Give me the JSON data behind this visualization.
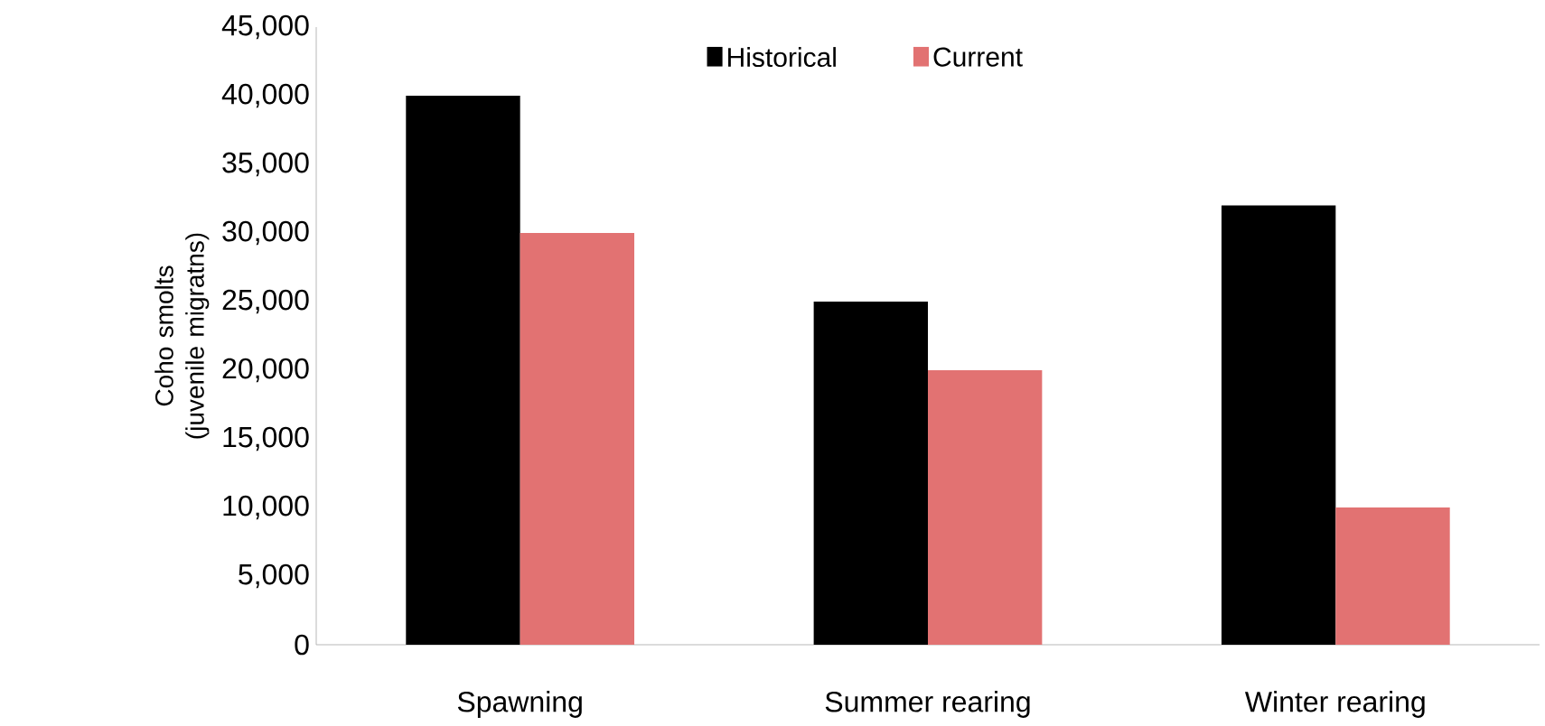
{
  "chart_data": {
    "type": "bar",
    "ylabel": "Coho smolts (juvenile migratns)",
    "categories": [
      "Spawning",
      "Summer rearing",
      "Winter rearing"
    ],
    "series": [
      {
        "name": "Historical",
        "color": "#000000",
        "values": [
          40000,
          25000,
          32000
        ]
      },
      {
        "name": "Current",
        "color": "#e27272",
        "values": [
          30000,
          20000,
          10000
        ]
      }
    ],
    "ylim": [
      0,
      45000
    ],
    "yticks": [
      {
        "value": 0,
        "label": "0"
      },
      {
        "value": 5000,
        "label": "5,000"
      },
      {
        "value": 10000,
        "label": "10,000"
      },
      {
        "value": 15000,
        "label": "15,000"
      },
      {
        "value": 20000,
        "label": "20,000"
      },
      {
        "value": 25000,
        "label": "25,000"
      },
      {
        "value": 30000,
        "label": "30,000"
      },
      {
        "value": 35000,
        "label": "35,000"
      },
      {
        "value": 40000,
        "label": "40,000"
      },
      {
        "value": 45000,
        "label": "45,000"
      }
    ],
    "grid": false,
    "legend": "top"
  }
}
